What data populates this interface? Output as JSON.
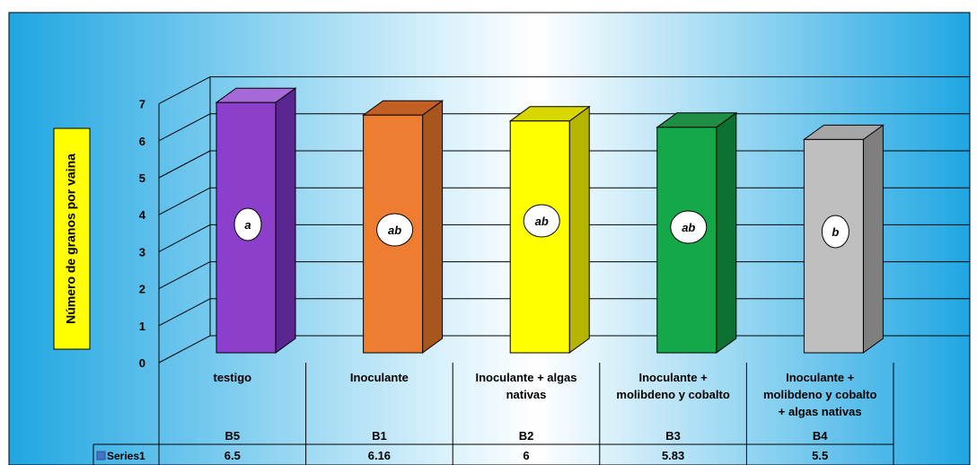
{
  "chart_data": {
    "type": "bar",
    "ylabel": "Número de granos por vaina",
    "ylim": [
      0,
      7
    ],
    "yticks": [
      0,
      1,
      2,
      3,
      4,
      5,
      6,
      7
    ],
    "grid": true,
    "categories": [
      "testigo",
      "Inoculante",
      "Inoculante + algas nativas",
      "Inoculante + molibdeno y cobalto",
      "Inoculante + molibdeno y cobalto + algas nativas"
    ],
    "category_lines": [
      [
        "testigo"
      ],
      [
        "Inoculante"
      ],
      [
        "Inoculante + algas",
        "nativas"
      ],
      [
        "Inoculante +",
        "molibdeno y cobalto"
      ],
      [
        "Inoculante +",
        "molibdeno y cobalto",
        "+ algas nativas"
      ]
    ],
    "codes": [
      "B5",
      "B1",
      "B2",
      "B3",
      "B4"
    ],
    "series": [
      {
        "name": "Series1",
        "values": [
          6.5,
          6.16,
          6,
          5.83,
          5.5
        ],
        "value_labels": [
          "6.5",
          "6.16",
          "6",
          "5.83",
          "5.5"
        ]
      }
    ],
    "significance_letters": [
      "a",
      "ab",
      "ab",
      "ab",
      "b"
    ],
    "bar_colors": [
      {
        "front": "#8B3FCB",
        "side": "#5A2590",
        "top": "#A66AD8"
      },
      {
        "front": "#ED7D31",
        "side": "#A9561E",
        "top": "#C25F23"
      },
      {
        "front": "#FFFF00",
        "side": "#B5B500",
        "top": "#D8D800"
      },
      {
        "front": "#14A84B",
        "side": "#0C7032",
        "top": "#1E8E44"
      },
      {
        "front": "#BFBFBF",
        "side": "#7F7F7F",
        "top": "#A6A6A6"
      }
    ],
    "legend_color": "#4472C4"
  }
}
